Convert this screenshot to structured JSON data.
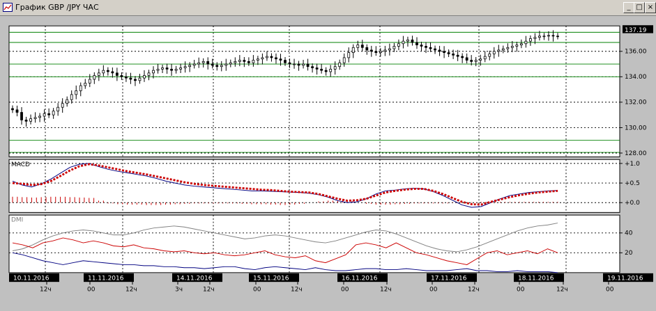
{
  "window": {
    "title": "График GBP /JPY ЧАС",
    "min_glyph": "_",
    "max_glyph": "□",
    "close_glyph": "×",
    "colors": {
      "chrome": "#d4d0c8",
      "plot_bg": "#ffffff",
      "price": "#000000",
      "level": "#008000"
    }
  },
  "chart_data": [
    {
      "type": "candlestick",
      "panel": "price",
      "title": "",
      "current_price_label": "137.19",
      "y_ticks": [
        "136.00",
        "134.00",
        "132.00",
        "130.00",
        "128.00"
      ],
      "ylim": [
        127.7,
        138.0
      ],
      "levels": [
        137.5,
        136.7,
        135.0,
        134.0,
        129.0,
        128.05
      ],
      "x_dates": [
        "10.11.2016",
        "11.11.2016",
        "14.11.2016",
        "15.11.2016",
        "16.11.2016",
        "17.11.2016",
        "18.11.2016",
        "19.11.2016"
      ],
      "x_hour_ticks": [
        "12ч",
        "00",
        "12ч",
        "3ч",
        "12ч",
        "00",
        "12ч",
        "00",
        "12ч",
        "00",
        "12ч",
        "00",
        "12ч",
        "00"
      ],
      "close_series": [
        131.4,
        131.2,
        130.6,
        130.5,
        130.7,
        130.8,
        130.9,
        131.1,
        131.0,
        131.3,
        131.6,
        131.9,
        132.2,
        132.6,
        132.9,
        133.3,
        133.5,
        133.8,
        134.1,
        134.3,
        134.5,
        134.4,
        134.3,
        134.1,
        134.0,
        133.9,
        133.8,
        133.7,
        133.9,
        134.1,
        134.3,
        134.5,
        134.6,
        134.7,
        134.6,
        134.5,
        134.6,
        134.7,
        134.8,
        134.9,
        135.0,
        135.1,
        135.2,
        135.0,
        134.9,
        134.8,
        134.9,
        135.0,
        135.1,
        135.2,
        135.3,
        135.2,
        135.1,
        135.3,
        135.4,
        135.5,
        135.6,
        135.5,
        135.4,
        135.3,
        135.1,
        135.0,
        135.0,
        134.9,
        135.0,
        134.8,
        134.7,
        134.6,
        134.5,
        134.4,
        134.6,
        134.8,
        135.1,
        135.5,
        135.9,
        136.3,
        136.5,
        136.3,
        136.1,
        136.0,
        135.9,
        136.0,
        136.1,
        136.2,
        136.4,
        136.6,
        136.8,
        136.9,
        136.7,
        136.5,
        136.4,
        136.3,
        136.2,
        136.1,
        136.0,
        135.9,
        135.8,
        135.7,
        135.6,
        135.5,
        135.3,
        135.2,
        135.3,
        135.4,
        135.6,
        135.8,
        136.0,
        136.1,
        136.2,
        136.3,
        136.4,
        136.5,
        136.6,
        136.8,
        137.0,
        137.1,
        137.2,
        137.2,
        137.25,
        137.2,
        137.19
      ]
    },
    {
      "type": "line",
      "panel": "macd",
      "title": "MACD",
      "y_ticks": [
        "+1.0",
        "+0.5",
        "+0.0"
      ],
      "ylim": [
        -0.25,
        1.1
      ],
      "series": [
        {
          "name": "",
          "color": "#000080",
          "values": [
            0.55,
            0.45,
            0.4,
            0.48,
            0.6,
            0.75,
            0.9,
            0.98,
            1.0,
            0.92,
            0.85,
            0.8,
            0.76,
            0.72,
            0.68,
            0.62,
            0.55,
            0.5,
            0.45,
            0.42,
            0.4,
            0.38,
            0.36,
            0.34,
            0.32,
            0.3,
            0.3,
            0.29,
            0.28,
            0.27,
            0.26,
            0.24,
            0.2,
            0.14,
            0.05,
            0.0,
            0.02,
            0.1,
            0.22,
            0.3,
            0.32,
            0.35,
            0.37,
            0.35,
            0.28,
            0.18,
            0.06,
            -0.06,
            -0.12,
            -0.1,
            0.0,
            0.1,
            0.18,
            0.22,
            0.26,
            0.28,
            0.3,
            0.31
          ]
        },
        {
          "name": "",
          "color": "#cc0000",
          "values": [
            0.5,
            0.48,
            0.45,
            0.47,
            0.55,
            0.68,
            0.82,
            0.93,
            0.98,
            0.95,
            0.9,
            0.85,
            0.8,
            0.76,
            0.72,
            0.67,
            0.62,
            0.57,
            0.52,
            0.48,
            0.45,
            0.43,
            0.41,
            0.39,
            0.37,
            0.35,
            0.33,
            0.32,
            0.3,
            0.28,
            0.27,
            0.26,
            0.22,
            0.16,
            0.1,
            0.05,
            0.06,
            0.1,
            0.18,
            0.26,
            0.3,
            0.33,
            0.35,
            0.35,
            0.3,
            0.22,
            0.12,
            0.02,
            -0.04,
            -0.05,
            0.02,
            0.08,
            0.14,
            0.19,
            0.23,
            0.26,
            0.28,
            0.3
          ]
        }
      ],
      "histogram": [
        0.15,
        0.14,
        0.13,
        0.14,
        0.15,
        0.15,
        0.14,
        0.13,
        0.12,
        0.05,
        -0.02,
        -0.04,
        -0.05,
        -0.05,
        -0.06,
        -0.06,
        -0.05,
        -0.04,
        -0.03,
        -0.02,
        -0.02,
        -0.02,
        -0.02,
        -0.02,
        -0.03,
        -0.04,
        -0.04,
        -0.05,
        -0.06,
        -0.05,
        -0.03,
        0.0,
        0.03,
        0.05,
        0.06,
        0.04,
        0.0,
        -0.03,
        -0.05,
        -0.05,
        -0.04,
        -0.03,
        -0.02,
        -0.02,
        -0.02,
        -0.02,
        -0.01,
        0.0,
        0.01,
        0.02,
        0.02,
        0.02,
        0.02,
        0.02,
        0.02,
        0.02,
        0.02,
        0.02
      ]
    },
    {
      "type": "line",
      "panel": "dmi",
      "title": "DMI",
      "y_ticks": [
        "40",
        "20"
      ],
      "ylim": [
        0,
        58
      ],
      "series": [
        {
          "name": "",
          "color": "#808080",
          "values": [
            22,
            24,
            28,
            33,
            37,
            40,
            42,
            43,
            42,
            40,
            38,
            38,
            40,
            43,
            45,
            46,
            47,
            46,
            44,
            42,
            40,
            38,
            36,
            34,
            35,
            37,
            38,
            37,
            35,
            33,
            31,
            30,
            32,
            35,
            38,
            41,
            43,
            42,
            39,
            35,
            31,
            27,
            24,
            22,
            21,
            23,
            26,
            30,
            34,
            38,
            42,
            45,
            47,
            48,
            50
          ]
        },
        {
          "name": "",
          "color": "#cc0000",
          "values": [
            30,
            28,
            25,
            30,
            32,
            35,
            33,
            30,
            32,
            30,
            27,
            26,
            28,
            25,
            24,
            22,
            21,
            22,
            20,
            19,
            20,
            18,
            17,
            18,
            20,
            22,
            18,
            16,
            15,
            17,
            12,
            10,
            14,
            18,
            28,
            30,
            28,
            25,
            30,
            25,
            20,
            18,
            15,
            12,
            10,
            8,
            14,
            20,
            22,
            18,
            20,
            22,
            19,
            24,
            20
          ]
        },
        {
          "name": "",
          "color": "#000080",
          "values": [
            20,
            18,
            15,
            12,
            10,
            8,
            10,
            12,
            11,
            10,
            9,
            8,
            8,
            7,
            7,
            6,
            6,
            5,
            5,
            4,
            5,
            6,
            6,
            4,
            3,
            5,
            6,
            5,
            4,
            3,
            5,
            3,
            2,
            2,
            3,
            4,
            4,
            3,
            3,
            4,
            3,
            2,
            2,
            2,
            3,
            4,
            2,
            2,
            1,
            1,
            2,
            1,
            1,
            1,
            0
          ]
        }
      ]
    }
  ]
}
